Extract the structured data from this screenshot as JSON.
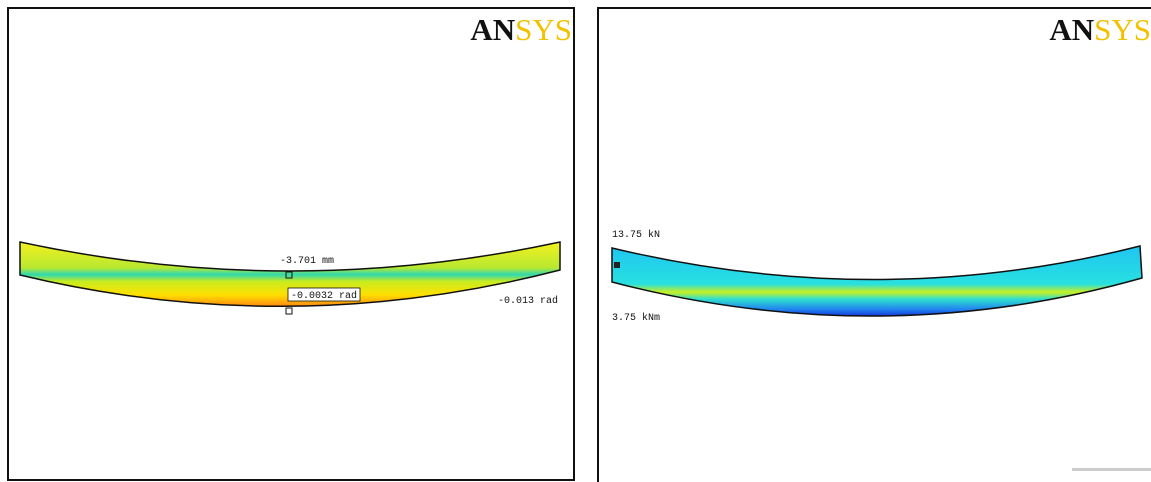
{
  "panels": [
    {
      "logo": {
        "an": "AN",
        "sys": "SYS"
      },
      "labels": [
        "-3.701 mm",
        "-0.0032 rad",
        "-0.013 rad"
      ]
    },
    {
      "logo": {
        "an": "AN",
        "sys": "SYS"
      },
      "labels": [
        "13.75 kN",
        "3.75 kNm"
      ]
    }
  ]
}
